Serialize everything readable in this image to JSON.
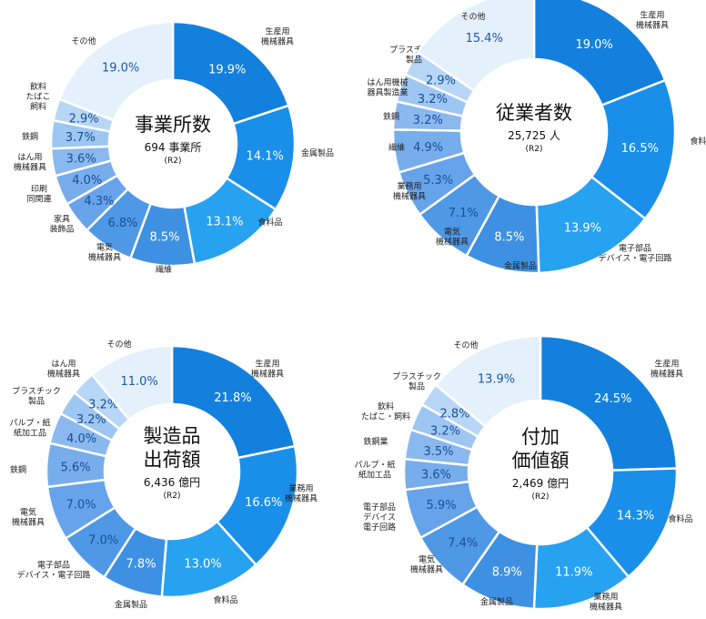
{
  "chart_data": [
    {
      "type": "pie",
      "title": [
        "事業所数"
      ],
      "subtitle": "694 事業所",
      "note": "(R2)",
      "slices": [
        {
          "label": [
            "生産用",
            "機械器具"
          ],
          "value": 19.9,
          "value_label": "19.9%"
        },
        {
          "label": [
            "金属製品"
          ],
          "value": 14.1,
          "value_label": "14.1%"
        },
        {
          "label": [
            "食料品"
          ],
          "value": 13.1,
          "value_label": "13.1%"
        },
        {
          "label": [
            "繊維"
          ],
          "value": 8.5,
          "value_label": "8.5%"
        },
        {
          "label": [
            "電気",
            "機械器具"
          ],
          "value": 6.8,
          "value_label": "6.8%"
        },
        {
          "label": [
            "家具",
            "装飾品"
          ],
          "value": 4.3,
          "value_label": "4.3%"
        },
        {
          "label": [
            "印刷",
            "同関連"
          ],
          "value": 4.0,
          "value_label": "4.0%"
        },
        {
          "label": [
            "はん用",
            "機械器具"
          ],
          "value": 3.6,
          "value_label": "3.6%"
        },
        {
          "label": [
            "鉄鋼"
          ],
          "value": 3.7,
          "value_label": "3.7%"
        },
        {
          "label": [
            "飲料",
            "たばこ",
            "飼料"
          ],
          "value": 2.9,
          "value_label": "2.9%"
        },
        {
          "label": [
            "その他"
          ],
          "value": 19.0,
          "value_label": "19.0%"
        }
      ]
    },
    {
      "type": "pie",
      "title": [
        "従業者数"
      ],
      "subtitle": "25,725 人",
      "note": "(R2)",
      "slices": [
        {
          "label": [
            "生産用",
            "機械器具"
          ],
          "value": 19.0,
          "value_label": "19.0%"
        },
        {
          "label": [
            "食料品"
          ],
          "value": 16.5,
          "value_label": "16.5%"
        },
        {
          "label": [
            "電子部品",
            "デバイス・電子回路"
          ],
          "value": 13.9,
          "value_label": "13.9%"
        },
        {
          "label": [
            "金属製品"
          ],
          "value": 8.5,
          "value_label": "8.5%"
        },
        {
          "label": [
            "電気",
            "機械器具"
          ],
          "value": 7.1,
          "value_label": "7.1%"
        },
        {
          "label": [
            "業務用",
            "機械器具"
          ],
          "value": 5.3,
          "value_label": "5.3%"
        },
        {
          "label": [
            "繊維"
          ],
          "value": 4.9,
          "value_label": "4.9%"
        },
        {
          "label": [
            "鉄鋼"
          ],
          "value": 3.2,
          "value_label": "3.2%"
        },
        {
          "label": [
            "はん用機械",
            "器具製造業"
          ],
          "value": 3.2,
          "value_label": "3.2%"
        },
        {
          "label": [
            "プラスチック",
            "製品"
          ],
          "value": 2.9,
          "value_label": "2.9%"
        },
        {
          "label": [
            "その他"
          ],
          "value": 15.4,
          "value_label": "15.4%"
        }
      ]
    },
    {
      "type": "pie",
      "title": [
        "製造品",
        "出荷額"
      ],
      "subtitle": "6,436 億円",
      "note": "(R2)",
      "slices": [
        {
          "label": [
            "生産用",
            "機械器具"
          ],
          "value": 21.8,
          "value_label": "21.8%"
        },
        {
          "label": [
            "業務用",
            "機械器具"
          ],
          "value": 16.6,
          "value_label": "16.6%"
        },
        {
          "label": [
            "食料品"
          ],
          "value": 13.0,
          "value_label": "13.0%"
        },
        {
          "label": [
            "金属製品"
          ],
          "value": 7.8,
          "value_label": "7.8%"
        },
        {
          "label": [
            "電子部品",
            "デバイス・電子回路"
          ],
          "value": 7.0,
          "value_label": "7.0%"
        },
        {
          "label": [
            "電気",
            "機械器具"
          ],
          "value": 7.0,
          "value_label": "7.0%"
        },
        {
          "label": [
            "鉄鋼"
          ],
          "value": 5.6,
          "value_label": "5.6%"
        },
        {
          "label": [
            "パルプ・紙",
            "紙加工品"
          ],
          "value": 4.0,
          "value_label": "4.0%"
        },
        {
          "label": [
            "プラスチック",
            "製品"
          ],
          "value": 3.2,
          "value_label": "3.2%"
        },
        {
          "label": [
            "はん用",
            "機械器具"
          ],
          "value": 3.2,
          "value_label": "3.2%"
        },
        {
          "label": [
            "その他"
          ],
          "value": 11.0,
          "value_label": "11.0%"
        }
      ]
    },
    {
      "type": "pie",
      "title": [
        "付加",
        "価値額"
      ],
      "subtitle": "2,469 億円",
      "note": "(R2)",
      "slices": [
        {
          "label": [
            "生産用",
            "機械器具"
          ],
          "value": 24.5,
          "value_label": "24.5%"
        },
        {
          "label": [
            "食料品"
          ],
          "value": 14.3,
          "value_label": "14.3%"
        },
        {
          "label": [
            "業務用",
            "機械器具"
          ],
          "value": 11.9,
          "value_label": "11.9%"
        },
        {
          "label": [
            "金属製品"
          ],
          "value": 8.9,
          "value_label": "8.9%"
        },
        {
          "label": [
            "電気",
            "機械器具"
          ],
          "value": 7.4,
          "value_label": "7.4%"
        },
        {
          "label": [
            "電子部品",
            "デバイス",
            "電子回路"
          ],
          "value": 5.9,
          "value_label": "5.9%"
        },
        {
          "label": [
            "パルプ・紙",
            "紙加工品"
          ],
          "value": 3.6,
          "value_label": "3.6%"
        },
        {
          "label": [
            "鉄鋼業"
          ],
          "value": 3.5,
          "value_label": "3.5%"
        },
        {
          "label": [
            "飲料",
            "たばこ・飼料"
          ],
          "value": 3.2,
          "value_label": "3.2%"
        },
        {
          "label": [
            "プラスチック",
            "製品"
          ],
          "value": 2.8,
          "value_label": "2.8%"
        },
        {
          "label": [
            "その他"
          ],
          "value": 13.9,
          "value_label": "13.9%"
        }
      ]
    }
  ]
}
